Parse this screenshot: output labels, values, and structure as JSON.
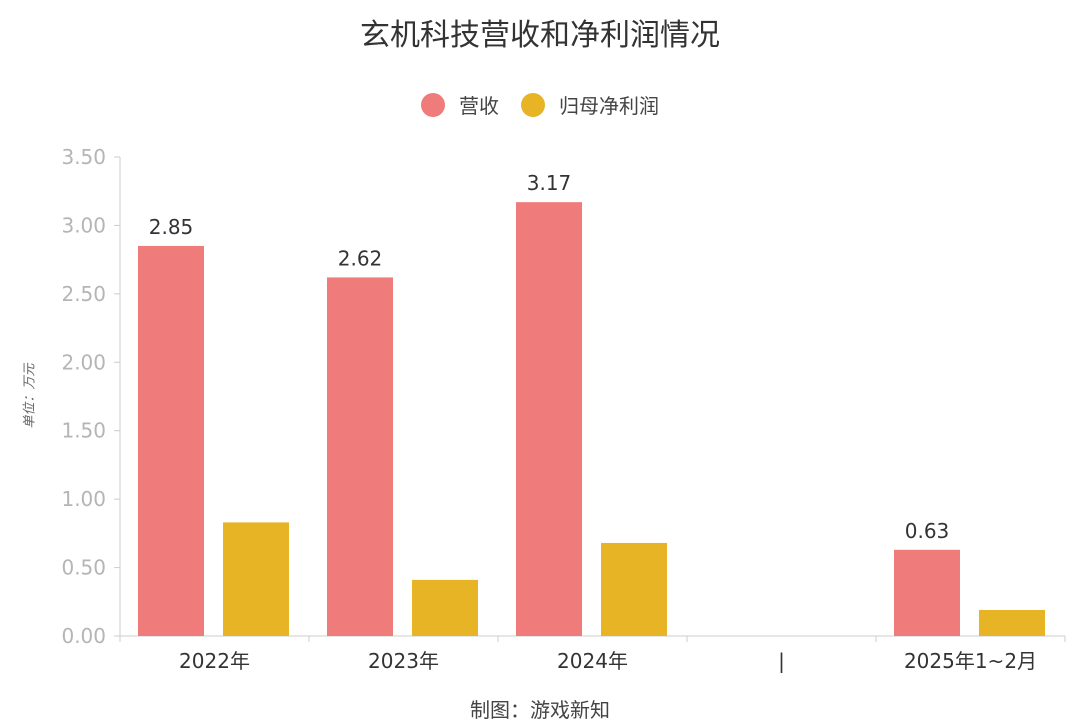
{
  "chart_data": {
    "type": "bar",
    "title": "玄机科技营收和净利润情况",
    "categories": [
      "2022年",
      "2023年",
      "2024年",
      "",
      "2025年1~2月"
    ],
    "axis_break_marker": "|",
    "series": [
      {
        "name": "营收",
        "color": "#ef7b7a",
        "values": [
          2.85,
          2.62,
          3.17,
          null,
          0.63
        ]
      },
      {
        "name": "归母净利润",
        "color": "#e6b425",
        "values": [
          0.83,
          0.41,
          0.68,
          null,
          0.19
        ]
      }
    ],
    "data_labels_series": 0,
    "ylabel": "单位：万元",
    "ylim": [
      0,
      3.5
    ],
    "yticks": [
      "0.00",
      "0.50",
      "1.00",
      "1.50",
      "2.00",
      "2.50",
      "3.00",
      "3.50"
    ],
    "legend_position": "top-center",
    "grid": false
  },
  "source_note": "制图：游戏新知"
}
